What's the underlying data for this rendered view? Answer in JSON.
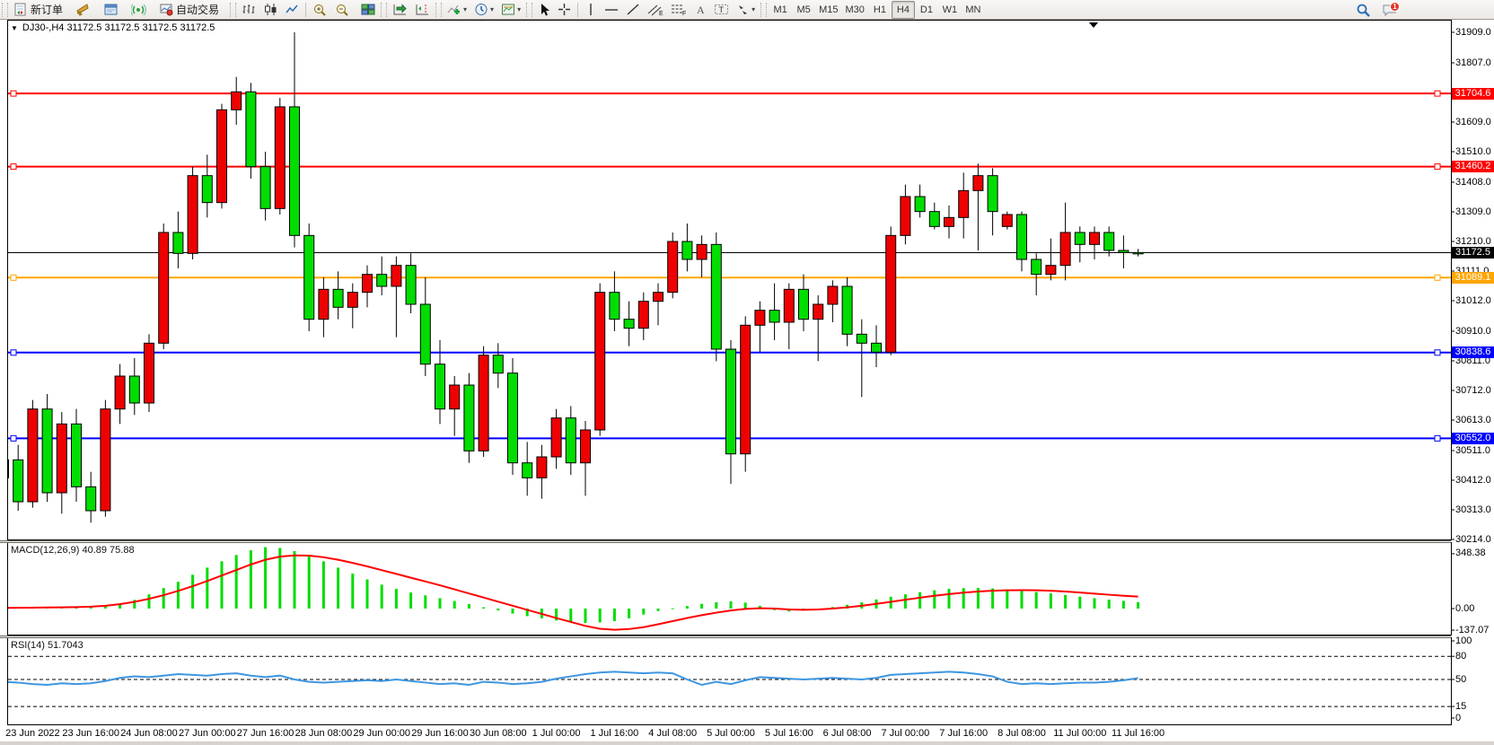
{
  "toolbar": {
    "new_order_label": "新订单",
    "auto_trading_label": "自动交易",
    "timeframes": [
      "M1",
      "M5",
      "M15",
      "M30",
      "H1",
      "H4",
      "D1",
      "W1",
      "MN"
    ],
    "active_timeframe": "H4",
    "notification_count": "1"
  },
  "chart": {
    "title": "DJ30-,H4  31172.5 31172.5 31172.5 31172.5"
  },
  "chart_data": {
    "type": "candlestick",
    "symbol": "DJ30-",
    "period": "H4",
    "title": "DJ30-,H4  31172.5 31172.5 31172.5 31172.5",
    "current_price": 31172.5,
    "colors": {
      "up": "#ee0000",
      "down": "#00dd00",
      "macd_hist": "#00dd00",
      "macd_signal": "#ff0000",
      "rsi": "#3d96e0",
      "level_red": "#ff0000",
      "level_orange": "#ffa500",
      "level_blue": "#0000ff",
      "level_black": "#000000"
    },
    "price_axis": {
      "min": 30214.0,
      "max": 31909.0,
      "ticks": [
        "31909.0",
        "31807.0",
        "31609.0",
        "31510.0",
        "31408.0",
        "31309.0",
        "31210.0",
        "31111.0",
        "31012.0",
        "30910.0",
        "30811.0",
        "30712.0",
        "30613.0",
        "30511.0",
        "30412.0",
        "30313.0",
        "30214.0"
      ]
    },
    "levels": [
      {
        "price": 31704.6,
        "label": "31704.6",
        "color": "#ff0000",
        "width": 2,
        "marker": true
      },
      {
        "price": 31460.2,
        "label": "31460.2",
        "color": "#ff0000",
        "width": 2,
        "marker": true
      },
      {
        "price": 31172.5,
        "label": "31172.5",
        "color": "#000000",
        "width": 1,
        "marker": false
      },
      {
        "price": 31089.1,
        "label": "31089.1",
        "color": "#ffa500",
        "width": 2,
        "marker": true
      },
      {
        "price": 30838.6,
        "label": "30838.6",
        "color": "#0000ff",
        "width": 2,
        "marker": true
      },
      {
        "price": 30552.0,
        "label": "30552.0",
        "color": "#0000ff",
        "width": 2,
        "marker": true
      }
    ],
    "time_labels": [
      "23 Jun 2022",
      "23 Jun 16:00",
      "24 Jun 08:00",
      "27 Jun 00:00",
      "27 Jun 16:00",
      "28 Jun 08:00",
      "29 Jun 00:00",
      "29 Jun 16:00",
      "30 Jun 08:00",
      "1 Jul 00:00",
      "1 Jul 16:00",
      "4 Jul 08:00",
      "5 Jul 00:00",
      "5 Jul 16:00",
      "6 Jul 08:00",
      "7 Jul 00:00",
      "7 Jul 16:00",
      "8 Jul 08:00",
      "11 Jul 00:00",
      "11 Jul 16:00"
    ],
    "candles": [
      [
        30420,
        30520,
        30340,
        30480
      ],
      [
        30480,
        30530,
        30310,
        30340
      ],
      [
        30340,
        30680,
        30320,
        30650
      ],
      [
        30650,
        30700,
        30340,
        30370
      ],
      [
        30370,
        30640,
        30300,
        30600
      ],
      [
        30600,
        30650,
        30340,
        30390
      ],
      [
        30390,
        30440,
        30270,
        30310
      ],
      [
        30310,
        30680,
        30290,
        30650
      ],
      [
        30650,
        30800,
        30600,
        30760
      ],
      [
        30760,
        30820,
        30630,
        30670
      ],
      [
        30670,
        30900,
        30640,
        30870
      ],
      [
        30870,
        31270,
        30850,
        31240
      ],
      [
        31240,
        31310,
        31120,
        31170
      ],
      [
        31170,
        31460,
        31150,
        31430
      ],
      [
        31430,
        31500,
        31290,
        31340
      ],
      [
        31340,
        31670,
        31320,
        31650
      ],
      [
        31650,
        31760,
        31600,
        31710
      ],
      [
        31710,
        31740,
        31420,
        31460
      ],
      [
        31460,
        31510,
        31280,
        31320
      ],
      [
        31320,
        31690,
        31300,
        31660
      ],
      [
        31660,
        31909,
        31190,
        31230
      ],
      [
        31230,
        31270,
        30910,
        30950
      ],
      [
        30950,
        31090,
        30890,
        31050
      ],
      [
        31050,
        31110,
        30950,
        30990
      ],
      [
        30990,
        31070,
        30920,
        31040
      ],
      [
        31040,
        31130,
        30990,
        31100
      ],
      [
        31100,
        31160,
        31030,
        31060
      ],
      [
        31060,
        31160,
        30890,
        31130
      ],
      [
        31130,
        31170,
        30970,
        31000
      ],
      [
        31000,
        31090,
        30760,
        30800
      ],
      [
        30800,
        30880,
        30600,
        30650
      ],
      [
        30650,
        30760,
        30560,
        30730
      ],
      [
        30730,
        30770,
        30470,
        30510
      ],
      [
        30510,
        30860,
        30490,
        30830
      ],
      [
        30830,
        30870,
        30720,
        30770
      ],
      [
        30770,
        30820,
        30430,
        30470
      ],
      [
        30470,
        30540,
        30360,
        30420
      ],
      [
        30420,
        30530,
        30350,
        30490
      ],
      [
        30490,
        30650,
        30450,
        30620
      ],
      [
        30620,
        30660,
        30430,
        30470
      ],
      [
        30470,
        30610,
        30360,
        30580
      ],
      [
        30580,
        31070,
        30560,
        31040
      ],
      [
        31040,
        31110,
        30910,
        30950
      ],
      [
        30950,
        31010,
        30860,
        30920
      ],
      [
        30920,
        31040,
        30880,
        31010
      ],
      [
        31010,
        31070,
        30930,
        31040
      ],
      [
        31040,
        31240,
        31020,
        31210
      ],
      [
        31210,
        31270,
        31110,
        31150
      ],
      [
        31150,
        31230,
        31090,
        31200
      ],
      [
        31200,
        31240,
        30810,
        30850
      ],
      [
        30850,
        30880,
        30400,
        30500
      ],
      [
        30500,
        30960,
        30440,
        30930
      ],
      [
        30930,
        31010,
        30840,
        30980
      ],
      [
        30980,
        31070,
        30880,
        30940
      ],
      [
        30940,
        31070,
        30850,
        31050
      ],
      [
        31050,
        31100,
        30910,
        30950
      ],
      [
        30950,
        31030,
        30810,
        31000
      ],
      [
        31000,
        31080,
        30940,
        31060
      ],
      [
        31060,
        31090,
        30860,
        30900
      ],
      [
        30900,
        30950,
        30690,
        30870
      ],
      [
        30870,
        30930,
        30790,
        30840
      ],
      [
        30840,
        31260,
        30830,
        31230
      ],
      [
        31230,
        31400,
        31200,
        31360
      ],
      [
        31360,
        31400,
        31290,
        31310
      ],
      [
        31310,
        31340,
        31250,
        31260
      ],
      [
        31260,
        31330,
        31220,
        31290
      ],
      [
        31290,
        31440,
        31220,
        31380
      ],
      [
        31380,
        31470,
        31180,
        31430
      ],
      [
        31430,
        31455,
        31230,
        31310
      ],
      [
        31260,
        31310,
        31250,
        31300
      ],
      [
        31300,
        31310,
        31110,
        31150
      ],
      [
        31150,
        31170,
        31030,
        31100
      ],
      [
        31100,
        31220,
        31080,
        31130
      ],
      [
        31130,
        31340,
        31080,
        31240
      ],
      [
        31240,
        31260,
        31140,
        31200
      ],
      [
        31200,
        31260,
        31150,
        31240
      ],
      [
        31240,
        31260,
        31160,
        31180
      ],
      [
        31180,
        31230,
        31120,
        31173
      ],
      [
        31173,
        31185,
        31160,
        31172
      ]
    ],
    "macd": {
      "label": "MACD(12,26,9) 40.89 75.88",
      "axis_ticks": [
        "348.38",
        "0.00",
        "-137.07"
      ],
      "axis_values": [
        348.38,
        0.0,
        -137.07
      ],
      "histogram": [
        4,
        6,
        5,
        8,
        12,
        10,
        8,
        14,
        28,
        55,
        90,
        130,
        170,
        215,
        260,
        300,
        340,
        370,
        390,
        385,
        365,
        335,
        300,
        260,
        222,
        185,
        152,
        125,
        102,
        84,
        66,
        48,
        28,
        8,
        -12,
        -32,
        -48,
        -62,
        -76,
        -86,
        -91,
        -88,
        -80,
        -62,
        -38,
        -16,
        2,
        16,
        30,
        40,
        46,
        38,
        18,
        -10,
        -18,
        -12,
        -2,
        10,
        24,
        40,
        58,
        75,
        90,
        104,
        116,
        125,
        130,
        131,
        128,
        122,
        114,
        105,
        96,
        86,
        76,
        66,
        57,
        49,
        41
      ],
      "signal": [
        4,
        5,
        6,
        7,
        8,
        9,
        12,
        18,
        28,
        43,
        62,
        85,
        112,
        142,
        175,
        210,
        245,
        280,
        310,
        330,
        338,
        336,
        326,
        310,
        290,
        268,
        244,
        220,
        196,
        172,
        148,
        122,
        96,
        70,
        44,
        18,
        -8,
        -34,
        -60,
        -85,
        -110,
        -128,
        -135,
        -130,
        -118,
        -100,
        -80,
        -60,
        -42,
        -26,
        -12,
        -2,
        2,
        0,
        -6,
        -8,
        -6,
        0,
        8,
        18,
        30,
        43,
        56,
        69,
        81,
        92,
        101,
        108,
        113,
        116,
        117,
        116,
        113,
        108,
        102,
        95,
        88,
        81,
        76
      ]
    },
    "rsi": {
      "label": "RSI(14) 51.7043",
      "axis_ticks": [
        "100",
        "80",
        "50",
        "15",
        "0"
      ],
      "axis_values": [
        100,
        80,
        50,
        15,
        0
      ],
      "dashed_levels": [
        80,
        50,
        15
      ],
      "values": [
        47,
        46,
        44,
        43,
        45,
        44,
        45,
        48,
        52,
        54,
        53,
        55,
        57,
        56,
        55,
        57,
        58,
        55,
        53,
        55,
        50,
        47,
        46,
        47,
        48,
        49,
        48,
        50,
        48,
        46,
        44,
        45,
        43,
        47,
        46,
        44,
        45,
        47,
        51,
        54,
        57,
        59,
        60,
        59,
        58,
        59,
        58,
        50,
        43,
        47,
        44,
        49,
        53,
        52,
        51,
        50,
        51,
        52,
        51,
        50,
        52,
        56,
        57,
        58,
        59,
        60,
        59,
        57,
        54,
        47,
        44,
        45,
        44,
        45,
        46,
        46,
        47,
        49,
        51.7
      ]
    }
  }
}
